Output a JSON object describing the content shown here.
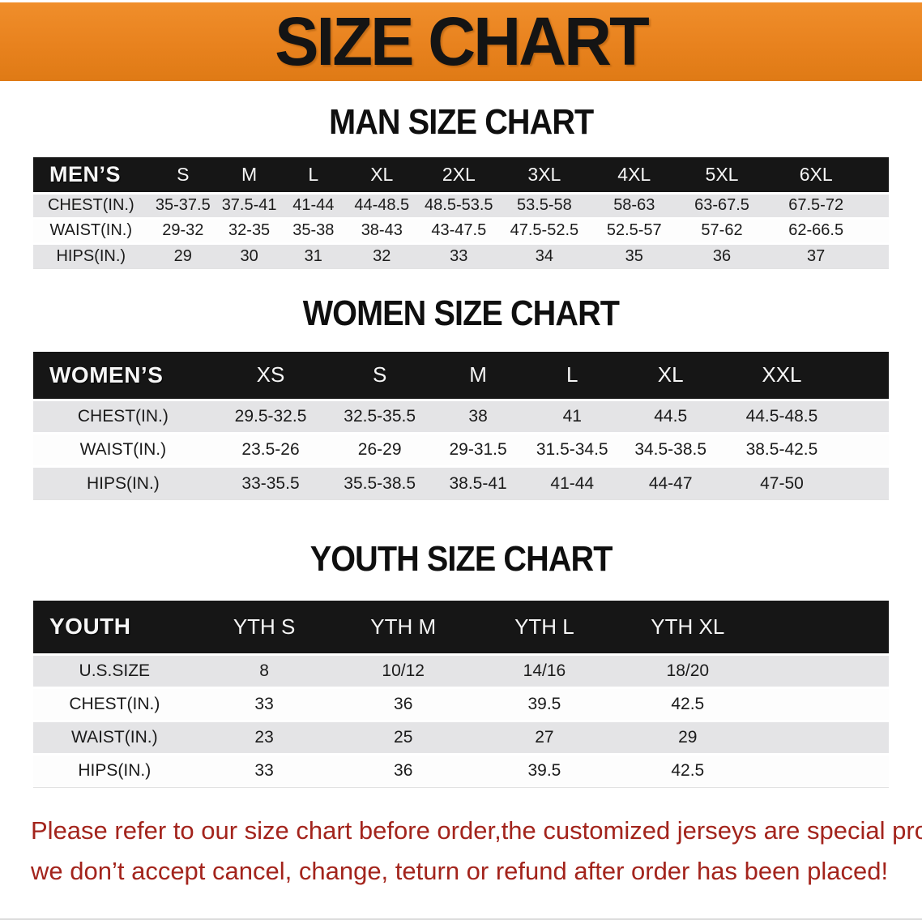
{
  "banner": {
    "title": "SIZE CHART"
  },
  "colors": {
    "banner_bg": "#E8821E",
    "banner_bg_light": "#F08E2B",
    "banner_bg_dark": "#DF7A15",
    "table_header_bg": "#161616",
    "row_alt_bg": "#E4E4E6",
    "disclaimer_text": "#A3241C"
  },
  "sections": [
    {
      "heading": "MAN SIZE CHART",
      "table": {
        "label": "MEN’S",
        "columns": [
          "S",
          "M",
          "L",
          "XL",
          "2XL",
          "3XL",
          "4XL",
          "5XL",
          "6XL"
        ],
        "rows": [
          {
            "label": "CHEST(IN.)",
            "values": [
              "35-37.5",
              "37.5-41",
              "41-44",
              "44-48.5",
              "48.5-53.5",
              "53.5-58",
              "58-63",
              "63-67.5",
              "67.5-72"
            ]
          },
          {
            "label": "WAIST(IN.)",
            "values": [
              "29-32",
              "32-35",
              "35-38",
              "38-43",
              "43-47.5",
              "47.5-52.5",
              "52.5-57",
              "57-62",
              "62-66.5"
            ]
          },
          {
            "label": "HIPS(IN.)",
            "values": [
              "29",
              "30",
              "31",
              "32",
              "33",
              "34",
              "35",
              "36",
              "37"
            ]
          }
        ]
      }
    },
    {
      "heading": "WOMEN SIZE CHART",
      "table": {
        "label": "WOMEN’S",
        "columns": [
          "XS",
          "S",
          "M",
          "L",
          "XL",
          "XXL"
        ],
        "rows": [
          {
            "label": "CHEST(IN.)",
            "values": [
              "29.5-32.5",
              "32.5-35.5",
              "38",
              "41",
              "44.5",
              "44.5-48.5"
            ]
          },
          {
            "label": "WAIST(IN.)",
            "values": [
              "23.5-26",
              "26-29",
              "29-31.5",
              "31.5-34.5",
              "34.5-38.5",
              "38.5-42.5"
            ]
          },
          {
            "label": "HIPS(IN.)",
            "values": [
              "33-35.5",
              "35.5-38.5",
              "38.5-41",
              "41-44",
              "44-47",
              "47-50"
            ]
          }
        ]
      }
    },
    {
      "heading": "YOUTH SIZE CHART",
      "table": {
        "label": "YOUTH",
        "columns": [
          "YTH S",
          "YTH M",
          "YTH L",
          "YTH XL"
        ],
        "rows": [
          {
            "label": "U.S.SIZE",
            "values": [
              "8",
              "10/12",
              "14/16",
              "18/20"
            ]
          },
          {
            "label": "CHEST(IN.)",
            "values": [
              "33",
              "36",
              "39.5",
              "42.5"
            ]
          },
          {
            "label": "WAIST(IN.)",
            "values": [
              "23",
              "25",
              "27",
              "29"
            ]
          },
          {
            "label": "HIPS(IN.)",
            "values": [
              "33",
              "36",
              "39.5",
              "42.5"
            ]
          }
        ]
      }
    }
  ],
  "disclaimer": {
    "line1": "Please refer to our size chart before order,the customized jerseys are special products,",
    "line2": "we don’t accept cancel, change, teturn or refund after order has been placed!"
  }
}
